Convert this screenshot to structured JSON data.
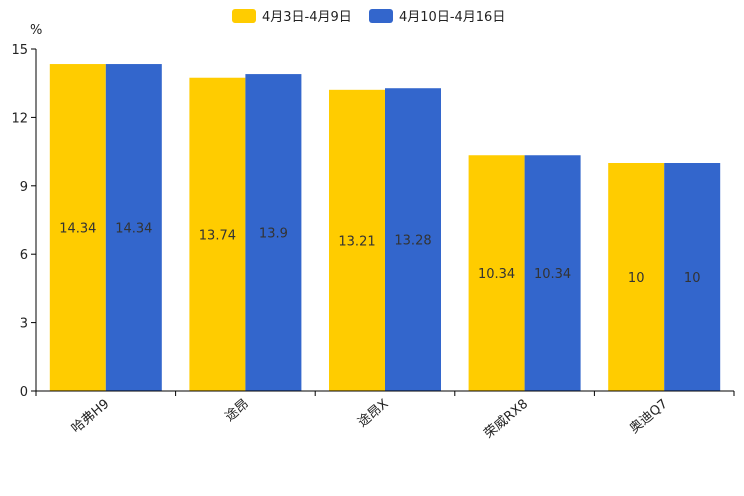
{
  "chart_data": {
    "type": "bar",
    "title": "",
    "xlabel": "",
    "ylabel": "%",
    "ylim": [
      0,
      15
    ],
    "yticks": [
      0,
      3,
      6,
      9,
      12,
      15
    ],
    "grid": false,
    "legend_position": "top-center",
    "categories": [
      "哈弗H9",
      "途昂",
      "途昂X",
      "荣威RX8",
      "奥迪Q7"
    ],
    "series": [
      {
        "name": "4月3日-4月9日",
        "color": "#FFCC00",
        "values": [
          14.34,
          13.74,
          13.21,
          10.34,
          10
        ],
        "labels": [
          "14.34",
          "13.74",
          "13.21",
          "10.34",
          "10"
        ]
      },
      {
        "name": "4月10日-4月16日",
        "color": "#3366CC",
        "values": [
          14.34,
          13.9,
          13.28,
          10.34,
          10
        ],
        "labels": [
          "14.34",
          "13.9",
          "13.28",
          "10.34",
          "10"
        ]
      }
    ]
  }
}
